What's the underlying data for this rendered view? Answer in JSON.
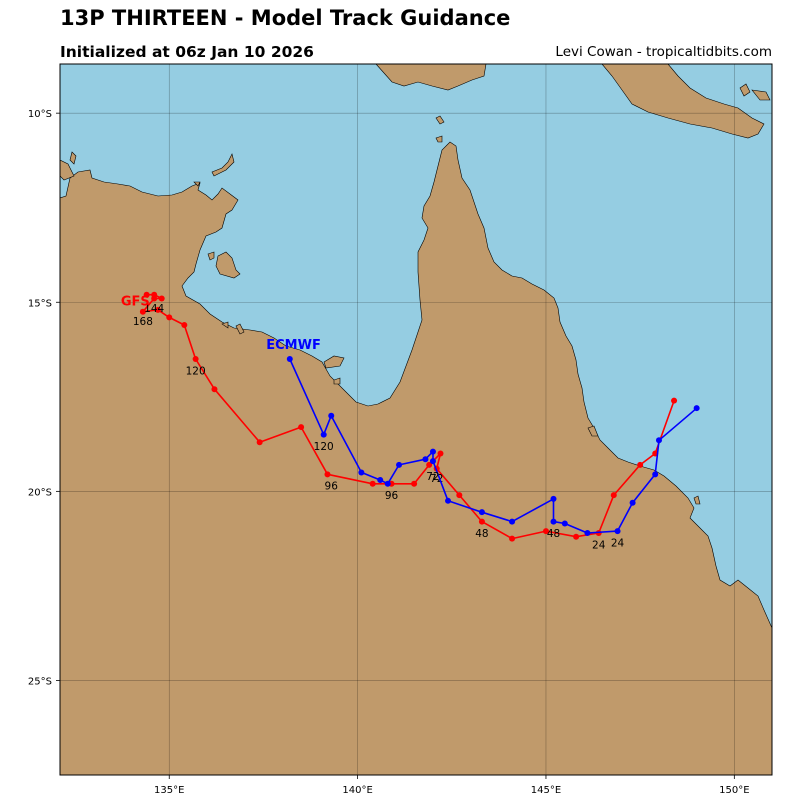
{
  "header": {
    "title": "13P THIRTEEN - Model Track Guidance",
    "subtitle": "Initialized at 06z Jan 10 2026",
    "credit": "Levi Cowan - tropicaltidbits.com"
  },
  "colors": {
    "ocean": "#95cde2",
    "land": "#c09a6b",
    "gfs": "#ff0000",
    "ecmwf": "#0000ff"
  },
  "axes": {
    "lon_ticks": [
      "135°E",
      "140°E",
      "145°E",
      "150°E"
    ],
    "lat_ticks": [
      "10°S",
      "15°S",
      "20°S",
      "25°S"
    ]
  },
  "chart_data": {
    "type": "map-track",
    "lon_range": [
      132.1,
      151.0
    ],
    "lat_range": [
      -27.5,
      -8.7
    ],
    "grid": true,
    "tick_lon_values": [
      135,
      140,
      145,
      150
    ],
    "tick_lat_values": [
      -10,
      -15,
      -20,
      -25
    ],
    "tracks": [
      {
        "name": "GFS",
        "points": [
          [
            148.4,
            -17.6
          ],
          [
            147.9,
            -19.0
          ],
          [
            147.5,
            -19.3
          ],
          [
            146.8,
            -20.1
          ],
          [
            146.4,
            -21.1
          ],
          [
            145.8,
            -21.2
          ],
          [
            145.0,
            -21.05
          ],
          [
            144.1,
            -21.25
          ],
          [
            143.3,
            -20.8
          ],
          [
            142.7,
            -20.1
          ],
          [
            142.1,
            -19.4
          ],
          [
            142.2,
            -19.0
          ],
          [
            141.9,
            -19.3
          ],
          [
            141.5,
            -19.8
          ],
          [
            140.9,
            -19.8
          ],
          [
            140.4,
            -19.8
          ],
          [
            139.2,
            -19.55
          ],
          [
            138.5,
            -18.3
          ],
          [
            137.4,
            -18.7
          ],
          [
            136.2,
            -17.3
          ],
          [
            135.7,
            -16.5
          ],
          [
            135.4,
            -15.6
          ],
          [
            135.0,
            -15.4
          ],
          [
            134.7,
            -15.2
          ],
          [
            134.3,
            -15.25
          ],
          [
            134.6,
            -14.9
          ],
          [
            134.8,
            -14.9
          ],
          [
            134.6,
            -14.8
          ],
          [
            134.4,
            -14.8
          ]
        ],
        "labels": [
          {
            "text": "24",
            "lon": 146.4,
            "lat": -21.4
          },
          {
            "text": "48",
            "lon": 143.3,
            "lat": -21.1
          },
          {
            "text": "72",
            "lon": 142.1,
            "lat": -19.65
          },
          {
            "text": "96",
            "lon": 140.9,
            "lat": -20.1
          },
          {
            "text": "120",
            "lon": 135.7,
            "lat": -16.8
          },
          {
            "text": "144",
            "lon": 134.6,
            "lat": -15.15
          },
          {
            "text": "168",
            "lon": 134.3,
            "lat": -15.5
          }
        ]
      },
      {
        "name": "ECMWF",
        "points": [
          [
            149.0,
            -17.8
          ],
          [
            148.0,
            -18.65
          ],
          [
            147.9,
            -19.55
          ],
          [
            147.3,
            -20.3
          ],
          [
            146.9,
            -21.05
          ],
          [
            146.1,
            -21.1
          ],
          [
            145.5,
            -20.85
          ],
          [
            145.2,
            -20.8
          ],
          [
            145.2,
            -20.2
          ],
          [
            144.1,
            -20.8
          ],
          [
            143.3,
            -20.55
          ],
          [
            142.4,
            -20.25
          ],
          [
            142.0,
            -19.2
          ],
          [
            142.0,
            -18.95
          ],
          [
            141.8,
            -19.15
          ],
          [
            141.1,
            -19.3
          ],
          [
            140.8,
            -19.8
          ],
          [
            140.6,
            -19.7
          ],
          [
            140.1,
            -19.5
          ],
          [
            139.3,
            -18.0
          ],
          [
            139.1,
            -18.5
          ],
          [
            138.2,
            -16.5
          ]
        ],
        "labels": [
          {
            "text": "24",
            "lon": 146.9,
            "lat": -21.35
          },
          {
            "text": "48",
            "lon": 145.2,
            "lat": -21.1
          },
          {
            "text": "72",
            "lon": 142.0,
            "lat": -19.6
          },
          {
            "text": "96",
            "lon": 139.3,
            "lat": -19.85
          },
          {
            "text": "120",
            "lon": 139.1,
            "lat": -18.8
          }
        ]
      }
    ],
    "model_labels": [
      {
        "text": "GFS",
        "lon": 134.1,
        "lat": -14.95,
        "series": "GFS"
      },
      {
        "text": "ECMWF",
        "lon": 138.3,
        "lat": -16.1,
        "series": "ECMWF"
      }
    ]
  }
}
